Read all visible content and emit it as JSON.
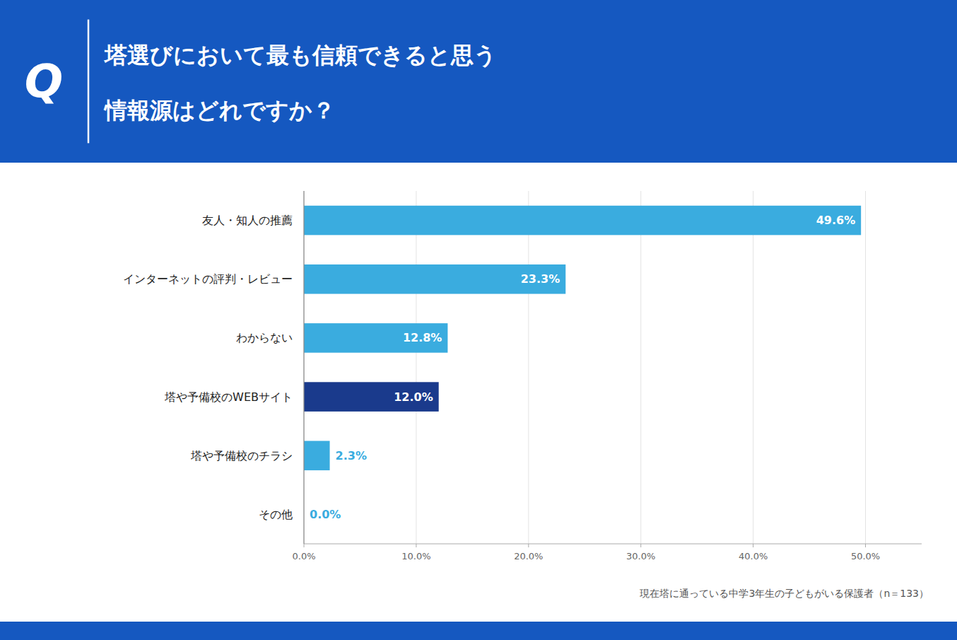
{
  "chart_data": {
    "type": "bar",
    "orientation": "horizontal",
    "title": "塔選びにおいて最も信頼できると思う",
    "subtitle": "情報源はどれですか？",
    "annotations": [
      "Q",
      "現在塔に通っている中学3年生の子どもがいる保護者（n＝133）"
    ],
    "categories": [
      "友人・知人の推薦",
      "インターネットの評判・レビュー",
      "わからない",
      "塔や予備校のWEBサイト",
      "塔や予備校のチラシ",
      "その他"
    ],
    "values": [
      49.6,
      23.3,
      12.8,
      12.0,
      2.3,
      0.0
    ],
    "value_labels": [
      "49.6%",
      "23.3%",
      "12.8%",
      "12.0%",
      "2.3%",
      "0.0%"
    ],
    "colors": [
      "#3AACDF",
      "#3AACDF",
      "#3AACDF",
      "#1A3A8C",
      "#3AACDF",
      "#3AACDF"
    ],
    "xlim": [
      0,
      55
    ],
    "xticks": [
      {
        "value": 0,
        "label": "0.0%"
      },
      {
        "value": 10,
        "label": "10.0%"
      },
      {
        "value": 20,
        "label": "20.0%"
      },
      {
        "value": 30,
        "label": "30.0%"
      },
      {
        "value": 40,
        "label": "40.0%"
      },
      {
        "value": 50,
        "label": "50.0%"
      }
    ],
    "grid": true,
    "data_labels": true
  }
}
